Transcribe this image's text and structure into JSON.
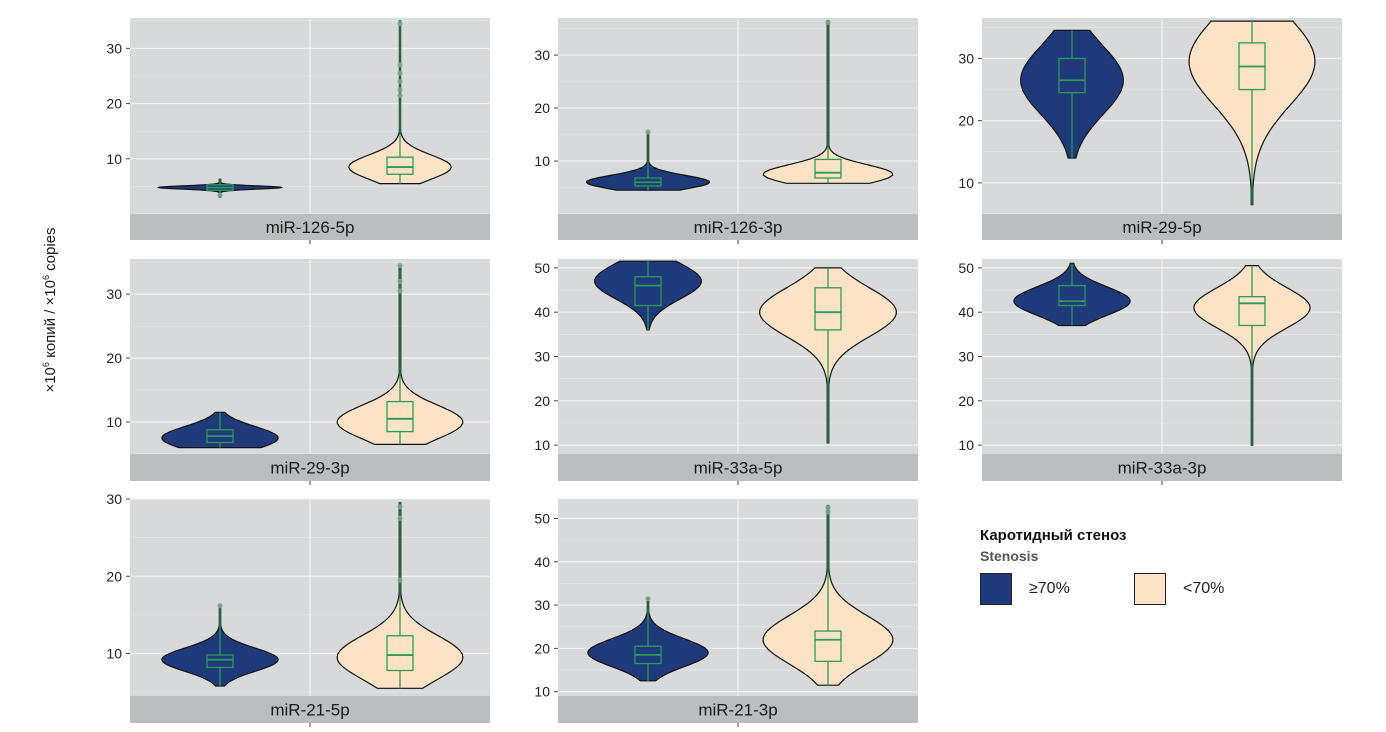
{
  "y_axis_label": "copies",
  "chart_data": [
    {
      "type": "violin",
      "strip_label": "miR-126-5p",
      "ylim": [
        0,
        35.5
      ],
      "yticks": [
        10,
        20,
        30
      ],
      "groups": [
        {
          "name": "≥70%",
          "min": 3,
          "q1": 4.3,
          "median": 4.8,
          "q3": 5.3,
          "max": 6.3,
          "mode": 4.8,
          "spread": 0.3,
          "width": 0.9,
          "outliers": [
            3.4
          ]
        },
        {
          "name": "<70%",
          "min": 5.5,
          "q1": 7.2,
          "median": 8.5,
          "q3": 10.3,
          "max": 35,
          "mode": 8.5,
          "spread": 2.2,
          "width": 0.75,
          "outliers": [
            21.5,
            22.5,
            24,
            25.5,
            27,
            34.5
          ]
        }
      ]
    },
    {
      "type": "violin",
      "strip_label": "miR-126-3p",
      "ylim": [
        0,
        37
      ],
      "yticks": [
        10,
        20,
        30
      ],
      "groups": [
        {
          "name": "≥70%",
          "min": 4.5,
          "q1": 5.3,
          "median": 6,
          "q3": 6.8,
          "max": 15.5,
          "mode": 6,
          "spread": 1.3,
          "width": 0.9,
          "outliers": [
            15.5
          ]
        },
        {
          "name": "<70%",
          "min": 5.8,
          "q1": 6.8,
          "median": 7.8,
          "q3": 10.3,
          "max": 36.5,
          "mode": 7.5,
          "spread": 1.8,
          "width": 0.95,
          "outliers": [
            36.2
          ]
        }
      ]
    },
    {
      "type": "violin",
      "strip_label": "miR-29-5p",
      "ylim": [
        5,
        36.5
      ],
      "yticks": [
        10,
        20,
        30
      ],
      "groups": [
        {
          "name": "≥70%",
          "min": 14,
          "q1": 24.5,
          "median": 26.5,
          "q3": 30,
          "max": 34.5,
          "mode": 26.5,
          "spread": 5.5,
          "width": 0.75,
          "outliers": []
        },
        {
          "name": "<70%",
          "min": 6.5,
          "q1": 25,
          "median": 28.7,
          "q3": 32.5,
          "max": 36,
          "mode": 29.5,
          "spread": 7,
          "width": 0.92,
          "outliers": []
        }
      ]
    },
    {
      "type": "violin",
      "strip_label": "miR-29-3p",
      "ylim": [
        5,
        35.5
      ],
      "yticks": [
        10,
        20,
        30
      ],
      "groups": [
        {
          "name": "≥70%",
          "min": 6,
          "q1": 6.8,
          "median": 7.8,
          "q3": 8.8,
          "max": 11.5,
          "mode": 7.5,
          "spread": 1.8,
          "width": 0.85,
          "outliers": []
        },
        {
          "name": "<70%",
          "min": 6.5,
          "q1": 8.5,
          "median": 10.5,
          "q3": 13.2,
          "max": 34.5,
          "mode": 10,
          "spread": 2.6,
          "width": 0.92,
          "outliers": [
            30.5,
            32,
            34.5
          ]
        }
      ]
    },
    {
      "type": "violin",
      "strip_label": "miR-33a-5p",
      "ylim": [
        8,
        52
      ],
      "yticks": [
        10,
        20,
        30,
        40,
        50
      ],
      "groups": [
        {
          "name": "≥70%",
          "min": 36,
          "q1": 41.5,
          "median": 46,
          "q3": 48,
          "max": 51.5,
          "mode": 47,
          "spread": 4,
          "width": 0.78,
          "outliers": []
        },
        {
          "name": "<70%",
          "min": 10.5,
          "q1": 36,
          "median": 40,
          "q3": 45.5,
          "max": 50,
          "mode": 40,
          "spread": 5.5,
          "width": 1.0,
          "outliers": []
        }
      ]
    },
    {
      "type": "violin",
      "strip_label": "miR-33a-3p",
      "ylim": [
        8,
        52
      ],
      "yticks": [
        10,
        20,
        30,
        40,
        50
      ],
      "groups": [
        {
          "name": "≥70%",
          "min": 37,
          "q1": 41.5,
          "median": 42.5,
          "q3": 46,
          "max": 51,
          "mode": 42.5,
          "spread": 3.2,
          "width": 0.85,
          "outliers": []
        },
        {
          "name": "<70%",
          "min": 10,
          "q1": 37,
          "median": 42,
          "q3": 43.5,
          "max": 50.5,
          "mode": 41,
          "spread": 4.5,
          "width": 0.85,
          "outliers": []
        }
      ]
    },
    {
      "type": "violin",
      "strip_label": "miR-21-5p",
      "ylim": [
        4.5,
        30
      ],
      "yticks": [
        10,
        20,
        30
      ],
      "groups": [
        {
          "name": "≥70%",
          "min": 5.8,
          "q1": 8.2,
          "median": 9.2,
          "q3": 9.8,
          "max": 16.2,
          "mode": 9.2,
          "spread": 1.5,
          "width": 0.85,
          "outliers": [
            16.2
          ]
        },
        {
          "name": "<70%",
          "min": 5.5,
          "q1": 7.8,
          "median": 9.8,
          "q3": 12.3,
          "max": 29.5,
          "mode": 9.5,
          "spread": 2.8,
          "width": 0.92,
          "outliers": [
            19.5,
            27.5,
            29
          ]
        }
      ]
    },
    {
      "type": "violin",
      "strip_label": "miR-21-3p",
      "ylim": [
        9,
        54.5
      ],
      "yticks": [
        10,
        20,
        30,
        40,
        50
      ],
      "groups": [
        {
          "name": "≥70%",
          "min": 12.5,
          "q1": 16.5,
          "median": 18.5,
          "q3": 20.5,
          "max": 31.5,
          "mode": 19,
          "spread": 3.2,
          "width": 0.88,
          "outliers": [
            31.5
          ]
        },
        {
          "name": "<70%",
          "min": 11.5,
          "q1": 17,
          "median": 22,
          "q3": 24,
          "max": 53,
          "mode": 22,
          "spread": 5.5,
          "width": 0.95,
          "outliers": [
            51.5,
            52.5
          ]
        }
      ]
    }
  ],
  "legend": {
    "title": "Каротидный стеноз",
    "subtitle": "Stenosis",
    "items": [
      {
        "label": "≥70%",
        "color": "#1f3a7a"
      },
      {
        "label": "<70%",
        "color": "#fde3c5"
      }
    ]
  },
  "colors": {
    "panel_bg": "#d7d9db",
    "strip_bg": "#bbbdbf",
    "grid_major": "#f2f2f2",
    "grid_minor": "#e6e7e8",
    "box_line": "#2a9a58"
  }
}
